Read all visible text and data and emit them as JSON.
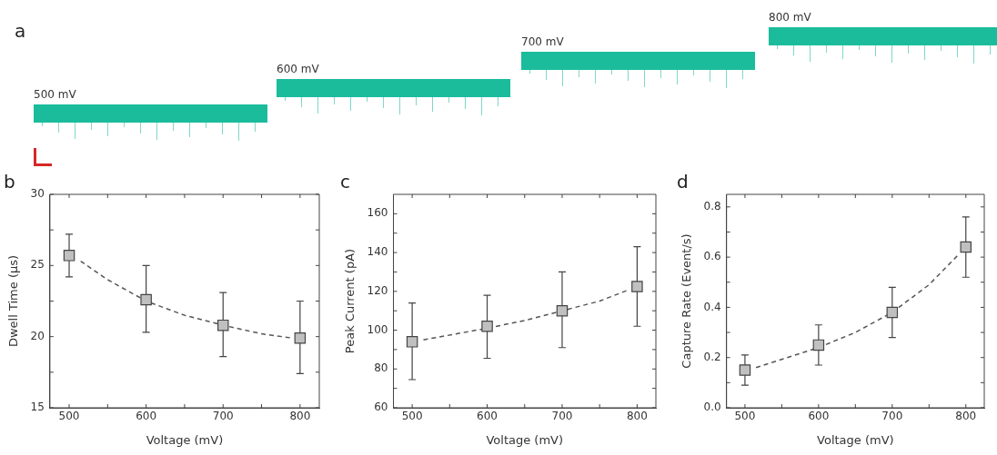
{
  "chart_data": [
    {
      "type": "other",
      "title": "a",
      "annotations": [
        "500 mV",
        "600 mV",
        "700 mV",
        "800 mV"
      ]
    },
    {
      "type": "scatter",
      "title": "b",
      "xlabel": "Voltage (mV)",
      "ylabel": "Dwell Time (µs)",
      "xlim": [
        475,
        825
      ],
      "xticks": [
        500,
        {
          "value": 550,
          "label": null
        },
        600,
        {
          "value": 650,
          "label": null
        },
        700,
        {
          "value": 750,
          "label": null
        },
        800
      ],
      "ylim": [
        15,
        30
      ],
      "yticks": [
        15,
        {
          "value": 17.5,
          "label": null
        },
        20,
        {
          "value": 22.5,
          "label": null
        },
        25,
        {
          "value": 27.5,
          "label": null
        },
        30
      ],
      "grid": false,
      "legend": false,
      "series": [
        {
          "color": "#c0c0c0",
          "marker": "square",
          "x": [
            500,
            600,
            700,
            800
          ],
          "values": [
            25.7,
            22.6,
            20.8,
            19.9
          ],
          "errors": [
            [
              24.2,
              27.2
            ],
            [
              20.3,
              25.0
            ],
            [
              18.6,
              23.1
            ],
            [
              17.4,
              22.5
            ]
          ]
        },
        {
          "type": "line",
          "color": "#555555",
          "marker": "none",
          "line_style": "dashed",
          "x": [
            515,
            550,
            600,
            650,
            700,
            750,
            790
          ],
          "values": [
            25.3,
            24.0,
            22.5,
            21.5,
            20.8,
            20.2,
            19.9
          ]
        }
      ]
    },
    {
      "type": "scatter",
      "title": "c",
      "xlabel": "Voltage (mV)",
      "ylabel": "Peak Current (pA)",
      "xlim": [
        475,
        825
      ],
      "xticks": [
        500,
        {
          "value": 550,
          "label": null
        },
        600,
        {
          "value": 650,
          "label": null
        },
        700,
        {
          "value": 750,
          "label": null
        },
        800
      ],
      "ylim": [
        60,
        170
      ],
      "yticks": [
        60,
        {
          "value": 70,
          "label": null
        },
        80,
        {
          "value": 90,
          "label": null
        },
        100,
        {
          "value": 110,
          "label": null
        },
        120,
        {
          "value": 130,
          "label": null
        },
        140,
        {
          "value": 150,
          "label": null
        },
        160
      ],
      "grid": false,
      "legend": false,
      "series": [
        {
          "color": "#c0c0c0",
          "marker": "square",
          "x": [
            500,
            600,
            700,
            800
          ],
          "values": [
            94,
            102,
            110,
            122.5
          ],
          "errors": [
            [
              74.5,
              114
            ],
            [
              85.5,
              118
            ],
            [
              91,
              130
            ],
            [
              102,
              143
            ]
          ]
        },
        {
          "type": "line",
          "color": "#555555",
          "marker": "none",
          "line_style": "dashed",
          "x": [
            515,
            600,
            650,
            700,
            750,
            790
          ],
          "values": [
            95,
            101,
            105,
            110,
            115,
            121
          ]
        }
      ]
    },
    {
      "type": "scatter",
      "title": "d",
      "xlabel": "Voltage (mV)",
      "ylabel": "Capture Rate (Event/s)",
      "xlim": [
        475,
        825
      ],
      "xticks": [
        500,
        {
          "value": 550,
          "label": null
        },
        600,
        {
          "value": 650,
          "label": null
        },
        700,
        {
          "value": 750,
          "label": null
        },
        800
      ],
      "ylim": [
        0,
        0.85
      ],
      "yticks": [
        {
          "value": 0,
          "label": "0.0"
        },
        {
          "value": 0.1,
          "label": null
        },
        0.2,
        {
          "value": 0.3,
          "label": null
        },
        0.4,
        {
          "value": 0.5,
          "label": null
        },
        0.6,
        {
          "value": 0.7,
          "label": null
        },
        0.8
      ],
      "grid": false,
      "legend": false,
      "series": [
        {
          "color": "#c0c0c0",
          "marker": "square",
          "x": [
            500,
            600,
            700,
            800
          ],
          "values": [
            0.15,
            0.25,
            0.38,
            0.64
          ],
          "errors": [
            [
              0.09,
              0.21
            ],
            [
              0.17,
              0.33
            ],
            [
              0.28,
              0.48
            ],
            [
              0.52,
              0.76
            ]
          ]
        },
        {
          "type": "line",
          "color": "#555555",
          "marker": "none",
          "line_style": "dashed",
          "x": [
            515,
            600,
            650,
            700,
            750,
            790
          ],
          "values": [
            0.16,
            0.24,
            0.3,
            0.38,
            0.49,
            0.61
          ]
        }
      ]
    }
  ]
}
